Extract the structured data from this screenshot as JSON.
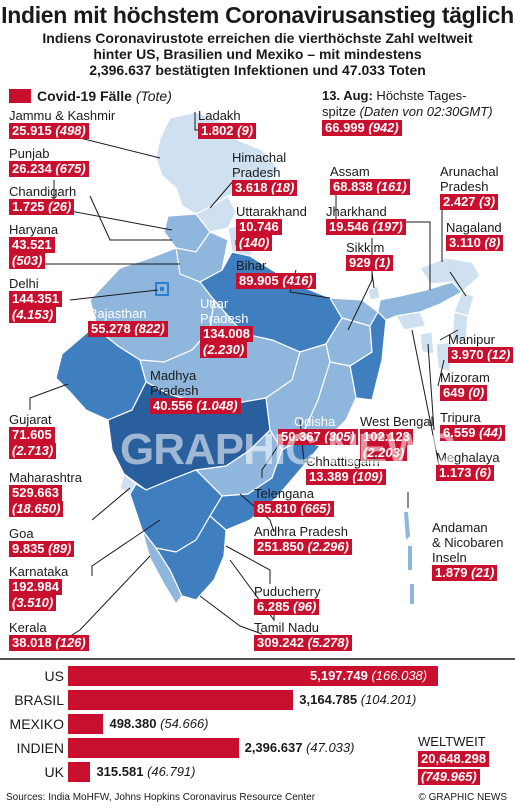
{
  "title": "Indien mit höchstem Coronavirusanstieg täglich",
  "subtitle": [
    "Indiens Coronavirustote erreichen die vierthöchste  Zahl weltweit",
    "hinter US, Brasilien und Mexiko – mit mindestens",
    "2,396.637 bestätigten Infektionen und 47.033 Toten"
  ],
  "legend": {
    "label": "Covid-19 Fälle",
    "deaths": "(Tote)",
    "color": "#c8102e"
  },
  "peak": {
    "line1_bold": "13. Aug:",
    "line1_rest": " Höchste Tages-",
    "line2": "spitze ",
    "line2_italic": "(Daten von 02:30GMT)",
    "cases": "66.999",
    "deaths": "(942)"
  },
  "chart_data": [
    {
      "type": "map",
      "unit": "Covid-19 Fälle (Tote)",
      "regions": [
        {
          "name": "Jammu & Kashmir",
          "cases": "25.915",
          "deaths": "(498)"
        },
        {
          "name": "Ladakh",
          "cases": "1.802",
          "deaths": "(9)"
        },
        {
          "name": "Punjab",
          "cases": "26.234",
          "deaths": "(675)"
        },
        {
          "name": "Himachal Pradesh",
          "cases": "3.618",
          "deaths": "(18)"
        },
        {
          "name": "Chandigarh",
          "cases": "1.725",
          "deaths": "(26)"
        },
        {
          "name": "Uttarakhand",
          "cases": "10.746",
          "deaths": "(140)"
        },
        {
          "name": "Haryana",
          "cases": "43.521",
          "deaths": "(503)"
        },
        {
          "name": "Bihar",
          "cases": "89.905",
          "deaths": "(416)"
        },
        {
          "name": "Delhi",
          "cases": "144.351",
          "deaths": "(4.153)"
        },
        {
          "name": "Rajasthan",
          "cases": "55.278",
          "deaths": "(822)"
        },
        {
          "name": "Uttar Pradesh",
          "cases": "134.008",
          "deaths": "(2.230)"
        },
        {
          "name": "Madhya Pradesh",
          "cases": "40.556",
          "deaths": "(1.048)"
        },
        {
          "name": "Assam",
          "cases": "68.838",
          "deaths": "(161)"
        },
        {
          "name": "Arunachal Pradesh",
          "cases": "2.427",
          "deaths": "(3)"
        },
        {
          "name": "Jharkhand",
          "cases": "19.546",
          "deaths": "(197)"
        },
        {
          "name": "Nagaland",
          "cases": "3.110",
          "deaths": "(8)"
        },
        {
          "name": "Sikkim",
          "cases": "929",
          "deaths": "(1)"
        },
        {
          "name": "Manipur",
          "cases": "3.970",
          "deaths": "(12)"
        },
        {
          "name": "Mizoram",
          "cases": "649",
          "deaths": "(0)"
        },
        {
          "name": "Tripura",
          "cases": "6.559",
          "deaths": "(44)"
        },
        {
          "name": "Meghalaya",
          "cases": "1.173",
          "deaths": "(6)"
        },
        {
          "name": "Gujarat",
          "cases": "71.605",
          "deaths": "(2.713)"
        },
        {
          "name": "Odisha",
          "cases": "50.367",
          "deaths": "(305)"
        },
        {
          "name": "West Bengal",
          "cases": "102.123",
          "deaths": "(2.203)"
        },
        {
          "name": "Chhattisgarh",
          "cases": "13.389",
          "deaths": "(109)"
        },
        {
          "name": "Maharashtra",
          "cases": "529.663",
          "deaths": "(18.650)"
        },
        {
          "name": "Telengana",
          "cases": "85.810",
          "deaths": "(665)"
        },
        {
          "name": "Goa",
          "cases": "9.835",
          "deaths": "(89)"
        },
        {
          "name": "Andhra Pradesh",
          "cases": "251.850",
          "deaths": "(2.296)"
        },
        {
          "name": "Karnataka",
          "cases": "192.984",
          "deaths": "(3.510)"
        },
        {
          "name": "Puducherry",
          "cases": "6.285",
          "deaths": "(96)"
        },
        {
          "name": "Kerala",
          "cases": "38.018",
          "deaths": "(126)"
        },
        {
          "name": "Tamil Nadu",
          "cases": "309.242",
          "deaths": "(5.278)"
        },
        {
          "name": "Andaman & Nicobaren Inseln",
          "cases": "1.879",
          "deaths": "(21)"
        }
      ]
    },
    {
      "type": "bar",
      "orientation": "horizontal",
      "categories": [
        "US",
        "BRASIL",
        "MEXIKO",
        "INDIEN",
        "UK"
      ],
      "values": [
        5197749,
        3164785,
        498380,
        2396637,
        315581
      ],
      "value_labels": [
        "5,197.749",
        "3,164.785",
        "498.380",
        "2,396.637",
        "315.581"
      ],
      "deaths_labels": [
        "(166.038)",
        "(104.201)",
        "(54.666)",
        "(47.033)",
        "(46.791)"
      ],
      "xlim": [
        0,
        5197749
      ]
    }
  ],
  "labels": {
    "jk": "Jammu & Kashmir",
    "ladakh": "Ladakh",
    "punjab": "Punjab",
    "hp1": "Himachal",
    "hp2": "Pradesh",
    "chandigarh": "Chandigarh",
    "uttarakhand": "Uttarakhand",
    "haryana": "Haryana",
    "bihar": "Bihar",
    "delhi": "Delhi",
    "rajasthan": "Rajasthan",
    "up1": "Uttar",
    "up2": "Pradesh",
    "mp1": "Madhya",
    "mp2": "Pradesh",
    "assam": "Assam",
    "arunachal1": "Arunachal",
    "arunachal2": "Pradesh",
    "jharkhand": "Jharkhand",
    "nagaland": "Nagaland",
    "sikkim": "Sikkim",
    "manipur": "Manipur",
    "mizoram": "Mizoram",
    "tripura": "Tripura",
    "meghalaya": "Meghalaya",
    "gujarat": "Gujarat",
    "odisha": "Odisha",
    "westbengal": "West Bengal",
    "chhattisgarh": "Chhattisgarh",
    "maharashtra": "Maharashtra",
    "telengana": "Telengana",
    "goa": "Goa",
    "ap": "Andhra Pradesh",
    "karnataka": "Karnataka",
    "puducherry": "Puducherry",
    "kerala": "Kerala",
    "tamilnadu": "Tamil Nadu",
    "andaman1": "Andaman",
    "andaman2": "& Nicobaren",
    "andaman3": "Inseln"
  },
  "world": {
    "label": "WELTWEIT",
    "cases": "20,648.298",
    "deaths": "(749.965)"
  },
  "watermark": "GRAPHIC NEWS",
  "footer": "Sources: India MoHFW, Johns Hopkins Coronavirus Resource Center",
  "credit": "© GRAPHIC NEWS",
  "colors": {
    "red": "#c8102e",
    "map_light": "#cfe0f1",
    "map_mid": "#8fb6dc",
    "map_dark": "#3f7fc0",
    "map_darker": "#2a5f9e"
  }
}
